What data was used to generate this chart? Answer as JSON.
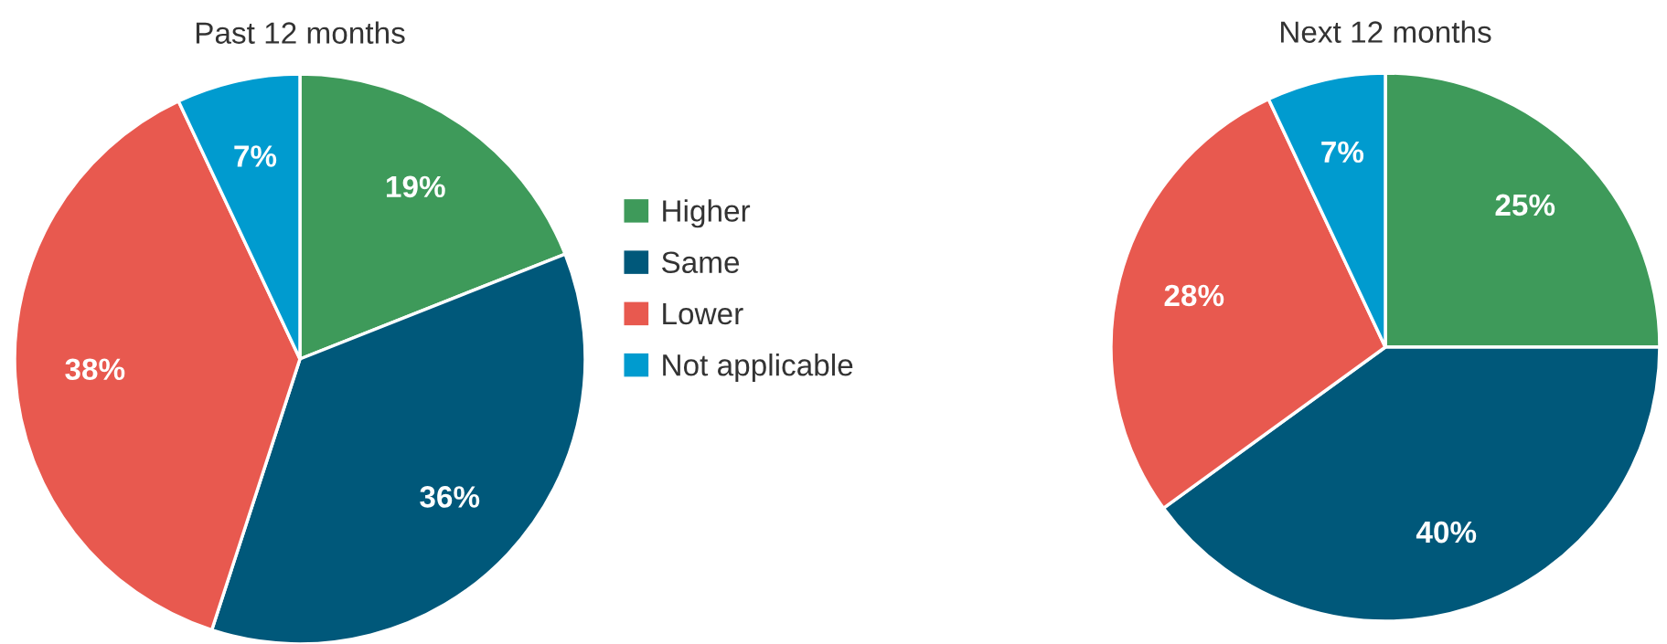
{
  "chart_data": [
    {
      "type": "pie",
      "title": "Past 12 months",
      "categories": [
        "Higher",
        "Same",
        "Lower",
        "Not applicable"
      ],
      "values": [
        19,
        36,
        38,
        7
      ],
      "value_labels": [
        "19%",
        "36%",
        "38%",
        "7%"
      ],
      "colors": [
        "#3e9a5a",
        "#00587a",
        "#e8594f",
        "#009bcf"
      ],
      "legend": "right"
    },
    {
      "type": "pie",
      "title": "Next 12 months",
      "categories": [
        null,
        null,
        null,
        null
      ],
      "values": [
        25,
        40,
        28,
        7
      ],
      "value_labels": [
        "25%",
        "40%",
        "28%",
        "7%"
      ],
      "colors": [
        "#3e9a5a",
        "#00587a",
        "#e8594f",
        "#009bcf"
      ]
    }
  ]
}
